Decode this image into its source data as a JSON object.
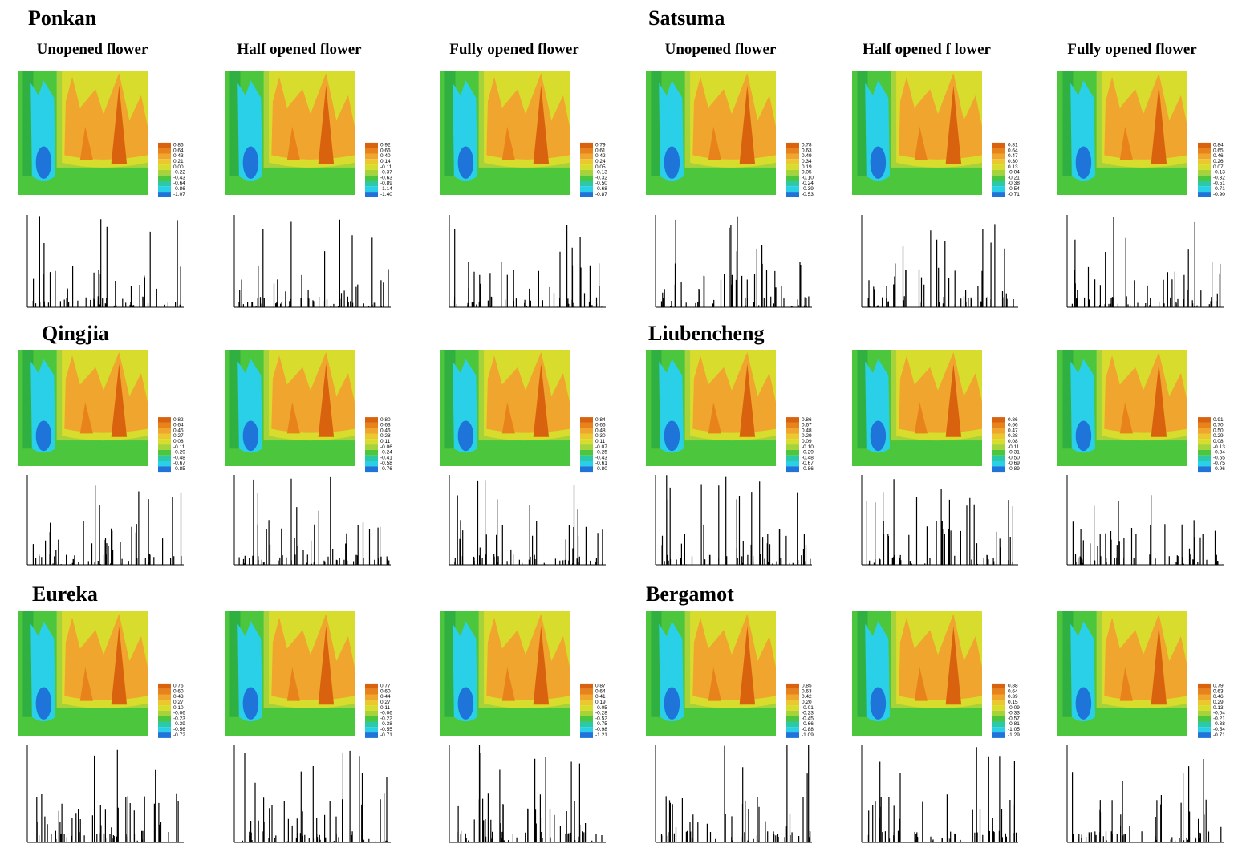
{
  "column_headers": [
    "Unopened flower",
    "Half opened flower",
    "Fully opened flower",
    "Unopened flower",
    "Half opened f lower",
    "Fully opened flower"
  ],
  "varieties": [
    {
      "name": "Ponkan",
      "legends": [
        [
          "0.86",
          "0.64",
          "0.43",
          "0.21",
          "0.00",
          "-0.22",
          "-0.43",
          "-0.64",
          "-0.86",
          "-1.07"
        ],
        [
          "0.92",
          "0.66",
          "0.40",
          "0.14",
          "-0.11",
          "-0.37",
          "-0.63",
          "-0.89",
          "-1.14",
          "-1.40"
        ],
        [
          "0.79",
          "0.61",
          "0.42",
          "0.24",
          "0.05",
          "-0.13",
          "-0.32",
          "-0.50",
          "-0.68",
          "-0.87"
        ]
      ]
    },
    {
      "name": "Satsuma",
      "legends": [
        [
          "0.78",
          "0.63",
          "0.49",
          "0.34",
          "0.19",
          "0.05",
          "-0.10",
          "-0.24",
          "-0.39",
          "-0.53"
        ],
        [
          "0.81",
          "0.64",
          "0.47",
          "0.30",
          "0.13",
          "-0.04",
          "-0.21",
          "-0.38",
          "-0.54",
          "-0.71"
        ],
        [
          "0.84",
          "0.65",
          "0.46",
          "0.26",
          "0.07",
          "-0.13",
          "-0.32",
          "-0.51",
          "-0.71",
          "-0.90"
        ]
      ]
    },
    {
      "name": "Qingjia",
      "legends": [
        [
          "0.82",
          "0.64",
          "0.45",
          "0.27",
          "0.08",
          "-0.11",
          "-0.29",
          "-0.48",
          "-0.67",
          "-0.85"
        ],
        [
          "0.80",
          "0.63",
          "0.46",
          "0.28",
          "0.11",
          "-0.06",
          "-0.24",
          "-0.41",
          "-0.58",
          "-0.76"
        ],
        [
          "0.84",
          "0.66",
          "0.48",
          "0.30",
          "0.11",
          "-0.07",
          "-0.25",
          "-0.43",
          "-0.61",
          "-0.80"
        ]
      ]
    },
    {
      "name": "Liubencheng",
      "legends": [
        [
          "0.86",
          "0.67",
          "0.48",
          "0.29",
          "0.09",
          "-0.10",
          "-0.29",
          "-0.48",
          "-0.67",
          "-0.86"
        ],
        [
          "0.86",
          "0.66",
          "0.47",
          "0.28",
          "0.08",
          "-0.11",
          "-0.31",
          "-0.50",
          "-0.69",
          "-0.89"
        ],
        [
          "0.91",
          "0.70",
          "0.50",
          "0.29",
          "0.08",
          "-0.13",
          "-0.34",
          "-0.55",
          "-0.75",
          "-0.96"
        ]
      ]
    },
    {
      "name": "Eureka",
      "legends": [
        [
          "0.76",
          "0.60",
          "0.43",
          "0.27",
          "0.10",
          "-0.06",
          "-0.23",
          "-0.39",
          "-0.56",
          "-0.72"
        ],
        [
          "0.77",
          "0.60",
          "0.44",
          "0.27",
          "0.11",
          "-0.06",
          "-0.22",
          "-0.38",
          "-0.55",
          "-0.71"
        ],
        [
          "0.87",
          "0.64",
          "0.41",
          "0.19",
          "-0.05",
          "-0.28",
          "-0.52",
          "-0.75",
          "-0.98",
          "-1.21"
        ]
      ]
    },
    {
      "name": "Bergamot",
      "legends": [
        [
          "0.85",
          "0.63",
          "0.42",
          "0.20",
          "-0.01",
          "-0.23",
          "-0.45",
          "-0.66",
          "-0.88",
          "-1.09"
        ],
        [
          "0.88",
          "0.64",
          "0.39",
          "0.15",
          "-0.09",
          "-0.33",
          "-0.57",
          "-0.81",
          "-1.05",
          "-1.29"
        ],
        [
          "0.79",
          "0.63",
          "0.46",
          "0.29",
          "0.13",
          "-0.04",
          "-0.21",
          "-0.38",
          "-0.54",
          "-0.71"
        ]
      ]
    }
  ]
}
